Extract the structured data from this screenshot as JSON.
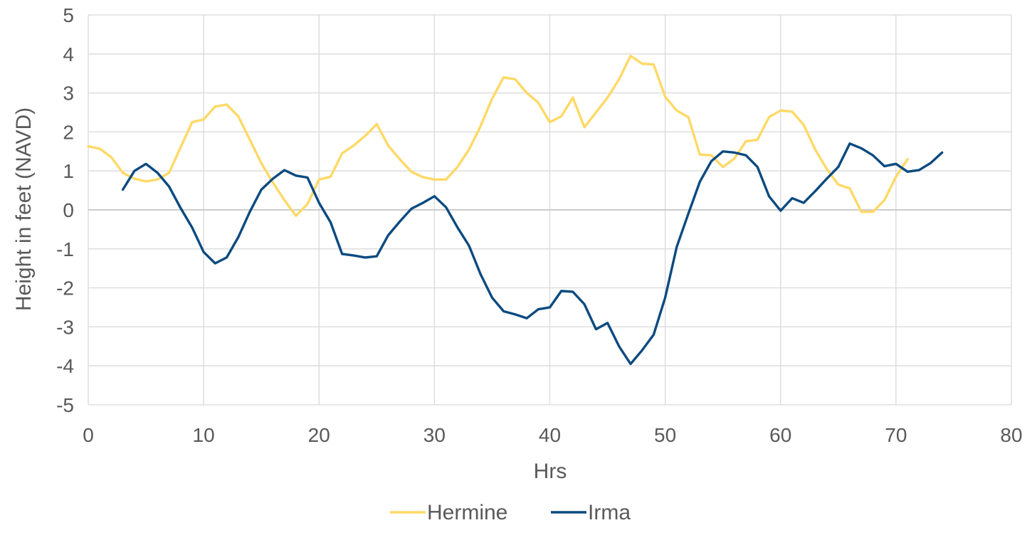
{
  "chart_data": {
    "type": "line",
    "title": "",
    "xlabel": "Hrs",
    "ylabel": "Height in feet (NAVD)",
    "xlim": [
      0,
      80
    ],
    "ylim": [
      -5,
      5
    ],
    "x_ticks": [
      "0",
      "10",
      "20",
      "30",
      "40",
      "50",
      "60",
      "70",
      "80"
    ],
    "y_ticks": [
      "5",
      "4",
      "3",
      "2",
      "1",
      "0",
      "-1",
      "-2",
      "-3",
      "-4",
      "-5"
    ],
    "grid": true,
    "legend_position": "bottom",
    "series": [
      {
        "name": "Hermine",
        "color": "#FFD966",
        "x": [
          0,
          1,
          2,
          3,
          4,
          5,
          6,
          7,
          8,
          9,
          10,
          11,
          12,
          13,
          14,
          15,
          16,
          17,
          18,
          19,
          20,
          21,
          22,
          23,
          24,
          25,
          26,
          27,
          28,
          29,
          30,
          31,
          32,
          33,
          34,
          35,
          36,
          37,
          38,
          39,
          40,
          41,
          42,
          43,
          44,
          45,
          46,
          47,
          48,
          49,
          50,
          51,
          52,
          53,
          54,
          55,
          56,
          57,
          58,
          59,
          60,
          61,
          62,
          63,
          64,
          65,
          66,
          67,
          68,
          69,
          70,
          71
        ],
        "values": [
          1.63,
          1.57,
          1.35,
          0.95,
          0.8,
          0.73,
          0.78,
          0.95,
          1.6,
          2.25,
          2.32,
          2.65,
          2.7,
          2.4,
          1.8,
          1.2,
          0.7,
          0.25,
          -0.15,
          0.15,
          0.78,
          0.85,
          1.45,
          1.65,
          1.9,
          2.2,
          1.65,
          1.3,
          0.98,
          0.84,
          0.78,
          0.78,
          1.1,
          1.55,
          2.15,
          2.85,
          3.4,
          3.35,
          3.0,
          2.75,
          2.25,
          2.4,
          2.88,
          2.12,
          2.5,
          2.88,
          3.35,
          3.95,
          3.75,
          3.73,
          2.9,
          2.55,
          2.38,
          1.42,
          1.4,
          1.1,
          1.32,
          1.76,
          1.8,
          2.38,
          2.55,
          2.52,
          2.18,
          1.55,
          1.05,
          0.65,
          0.55,
          -0.05,
          -0.05,
          0.25,
          0.85,
          1.3
        ]
      },
      {
        "name": "Irma",
        "color": "#0B4A80",
        "x": [
          3,
          4,
          5,
          6,
          7,
          8,
          9,
          10,
          11,
          12,
          13,
          14,
          15,
          16,
          17,
          18,
          19,
          20,
          21,
          22,
          23,
          24,
          25,
          26,
          27,
          28,
          29,
          30,
          31,
          32,
          33,
          34,
          35,
          36,
          37,
          38,
          39,
          40,
          41,
          42,
          43,
          44,
          45,
          46,
          47,
          48,
          49,
          50,
          51,
          52,
          53,
          54,
          55,
          56,
          57,
          58,
          59,
          60,
          61,
          62,
          63,
          64,
          65,
          66,
          67,
          68,
          69,
          70,
          71,
          72,
          73,
          74
        ],
        "values": [
          0.52,
          1.0,
          1.18,
          0.95,
          0.6,
          0.05,
          -0.45,
          -1.08,
          -1.37,
          -1.22,
          -0.7,
          -0.05,
          0.52,
          0.8,
          1.02,
          0.88,
          0.83,
          0.18,
          -0.32,
          -1.13,
          -1.17,
          -1.22,
          -1.19,
          -0.65,
          -0.3,
          0.03,
          0.18,
          0.35,
          0.07,
          -0.45,
          -0.92,
          -1.65,
          -2.25,
          -2.6,
          -2.68,
          -2.78,
          -2.55,
          -2.5,
          -2.08,
          -2.1,
          -2.42,
          -3.06,
          -2.9,
          -3.5,
          -3.95,
          -3.6,
          -3.2,
          -2.25,
          -0.95,
          -0.1,
          0.72,
          1.25,
          1.5,
          1.47,
          1.4,
          1.1,
          0.35,
          -0.02,
          0.3,
          0.18,
          0.48,
          0.8,
          1.1,
          1.7,
          1.58,
          1.4,
          1.12,
          1.18,
          0.98,
          1.02,
          1.2,
          1.47
        ]
      }
    ]
  }
}
